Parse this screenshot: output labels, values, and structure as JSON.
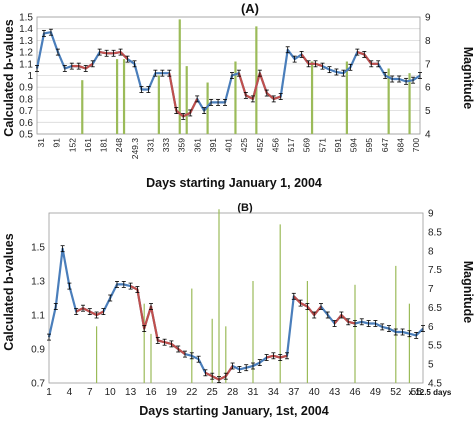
{
  "colors": {
    "line_blue": "#4a7ebb",
    "line_red": "#c0504d",
    "bar_green": "#9bbb59",
    "grid": "#d9d9d9",
    "errbar": "#000000"
  },
  "chart_data": [
    {
      "type": "line",
      "panel": "(A)",
      "xlabel": "Days starting  January 1, 2004",
      "ylabel": "Calculated  b-values",
      "y2label": "Magnitude",
      "ylim": [
        0.5,
        1.5
      ],
      "y_ticks": [
        "0.5",
        "0.6",
        "0.7",
        "0.8",
        "0.9",
        "1",
        "1.1",
        "1.2",
        "1.3",
        "1.4",
        "1.5"
      ],
      "y2lim": [
        4,
        9
      ],
      "y2_ticks": [
        "4",
        "5",
        "6",
        "7",
        "8",
        "9"
      ],
      "x_tick_labels": [
        "31",
        "91",
        "152",
        "161",
        "181",
        "248",
        "249.3",
        "331",
        "333",
        "359",
        "361",
        "391",
        "401",
        "425",
        "452",
        "456",
        "517",
        "569",
        "571",
        "591",
        "594",
        "595",
        "647",
        "684",
        "700"
      ],
      "grid": true,
      "b_values": [
        1.06,
        1.36,
        1.37,
        1.2,
        1.06,
        1.08,
        1.08,
        1.06,
        1.1,
        1.2,
        1.19,
        1.19,
        1.2,
        1.14,
        1.1,
        0.88,
        0.88,
        1.02,
        1.02,
        1.02,
        0.7,
        0.65,
        0.68,
        0.8,
        0.7,
        0.77,
        0.77,
        0.77,
        1.0,
        1.02,
        0.83,
        0.8,
        1.02,
        0.85,
        0.8,
        0.82,
        1.22,
        1.14,
        1.18,
        1.1,
        1.1,
        1.08,
        1.05,
        1.03,
        1.02,
        1.07,
        1.2,
        1.18,
        1.1,
        1.1,
        1.0,
        0.97,
        0.97,
        0.95,
        0.96,
        1.0
      ],
      "red_segments": [
        [
          5,
          8
        ],
        [
          9,
          13
        ],
        [
          19,
          23
        ],
        [
          29,
          35
        ],
        [
          38,
          41
        ],
        [
          46,
          49
        ]
      ],
      "magnitudes": [
        {
          "x": 7.5,
          "mag": 6.3
        },
        {
          "x": 12.5,
          "mag": 7.2
        },
        {
          "x": 13.5,
          "mag": 7.2
        },
        {
          "x": 18.5,
          "mag": 6.5
        },
        {
          "x": 21.5,
          "mag": 8.9
        },
        {
          "x": 22.5,
          "mag": 6.9
        },
        {
          "x": 25.5,
          "mag": 6.2
        },
        {
          "x": 29.5,
          "mag": 7.1
        },
        {
          "x": 32.5,
          "mag": 8.6
        },
        {
          "x": 40.5,
          "mag": 7.1
        },
        {
          "x": 45.5,
          "mag": 7.1
        },
        {
          "x": 51.5,
          "mag": 6.8
        },
        {
          "x": 54.5,
          "mag": 6.6
        }
      ]
    },
    {
      "type": "line",
      "panel": "(B)",
      "xlabel": "Days starting January, 1st, 2004",
      "x_unit": "x 12.5 days",
      "ylabel": "Calculated  b-values",
      "y2label": "Magnitude",
      "ylim": [
        0.7,
        1.7
      ],
      "y_ticks": [
        "0.7",
        "0.9",
        "1.1",
        "1.3",
        "1.5"
      ],
      "y2lim": [
        4.5,
        9
      ],
      "y2_ticks": [
        "4.5",
        "5",
        "5.5",
        "6",
        "6.5",
        "7",
        "7.5",
        "8",
        "8.5",
        "9"
      ],
      "x_tick_labels": [
        "1",
        "4",
        "7",
        "10",
        "13",
        "16",
        "19",
        "22",
        "25",
        "28",
        "31",
        "34",
        "37",
        "40",
        "43",
        "46",
        "49",
        "52",
        "55"
      ],
      "x_range": [
        1,
        56
      ],
      "grid": false,
      "b_values": [
        0.97,
        1.15,
        1.49,
        1.27,
        1.12,
        1.14,
        1.12,
        1.1,
        1.12,
        1.2,
        1.28,
        1.28,
        1.27,
        1.25,
        1.02,
        1.15,
        0.95,
        0.94,
        0.93,
        0.9,
        0.87,
        0.86,
        0.84,
        0.76,
        0.74,
        0.72,
        0.74,
        0.8,
        0.78,
        0.79,
        0.8,
        0.82,
        0.85,
        0.86,
        0.85,
        0.86,
        1.21,
        1.17,
        1.15,
        1.1,
        1.15,
        1.1,
        1.05,
        1.1,
        1.06,
        1.05,
        1.06,
        1.05,
        1.05,
        1.03,
        1.02,
        1.0,
        1.0,
        0.99,
        0.98,
        1.02
      ],
      "red_segments": [
        [
          4,
          8
        ],
        [
          12,
          20
        ],
        [
          23,
          27
        ],
        [
          32,
          35
        ],
        [
          36,
          40
        ],
        [
          42,
          45
        ]
      ],
      "magnitudes": [
        {
          "x": 8,
          "mag": 6.0
        },
        {
          "x": 15,
          "mag": 6.6
        },
        {
          "x": 16,
          "mag": 5.8
        },
        {
          "x": 22,
          "mag": 7.0
        },
        {
          "x": 25,
          "mag": 6.2
        },
        {
          "x": 26,
          "mag": 9.1
        },
        {
          "x": 27,
          "mag": 6.0
        },
        {
          "x": 31,
          "mag": 7.2
        },
        {
          "x": 35,
          "mag": 8.7
        },
        {
          "x": 39,
          "mag": 7.2
        },
        {
          "x": 46,
          "mag": 7.1
        },
        {
          "x": 52,
          "mag": 7.6
        },
        {
          "x": 54,
          "mag": 6.6
        }
      ]
    }
  ]
}
